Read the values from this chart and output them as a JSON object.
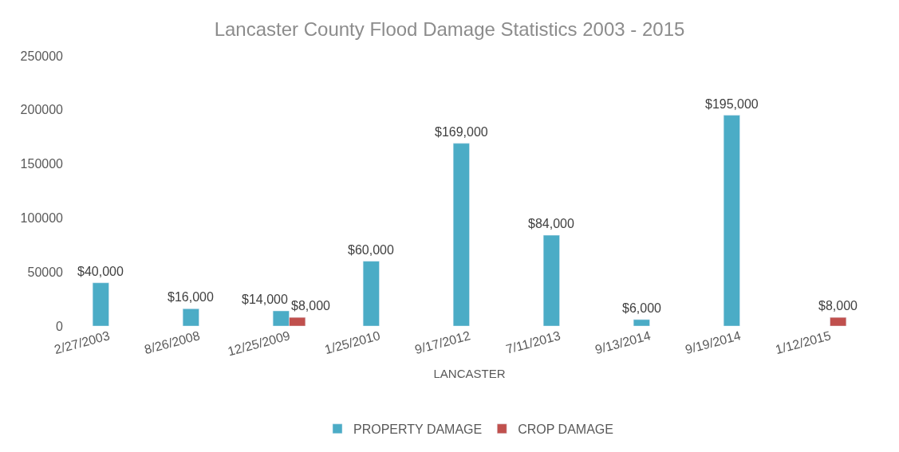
{
  "chart_data": {
    "type": "bar",
    "title": "Lancaster County Flood Damage Statistics 2003 - 2015",
    "xlabel": "LANCASTER",
    "categories": [
      "2/27/2003",
      "8/26/2008",
      "12/25/2009",
      "1/25/2010",
      "9/17/2012",
      "7/11/2013",
      "9/13/2014",
      "9/19/2014",
      "1/12/2015"
    ],
    "series": [
      {
        "name": "PROPERTY DAMAGE",
        "color": "#4bacc6",
        "values": [
          40000,
          16000,
          14000,
          60000,
          169000,
          84000,
          6000,
          195000,
          null
        ],
        "value_labels": [
          "$40,000",
          "$16,000",
          "$14,000",
          "$60,000",
          "$169,000",
          "$84,000",
          "$6,000",
          "$195,000",
          null
        ]
      },
      {
        "name": "CROP DAMAGE",
        "color": "#c0504d",
        "values": [
          null,
          null,
          8000,
          null,
          null,
          null,
          null,
          null,
          8000
        ],
        "value_labels": [
          null,
          null,
          "$8,000",
          null,
          null,
          null,
          null,
          null,
          "$8,000"
        ]
      }
    ],
    "ylim": [
      0,
      250000
    ],
    "yticks": [
      0,
      50000,
      100000,
      150000,
      200000,
      250000
    ],
    "legend": "bottom"
  }
}
